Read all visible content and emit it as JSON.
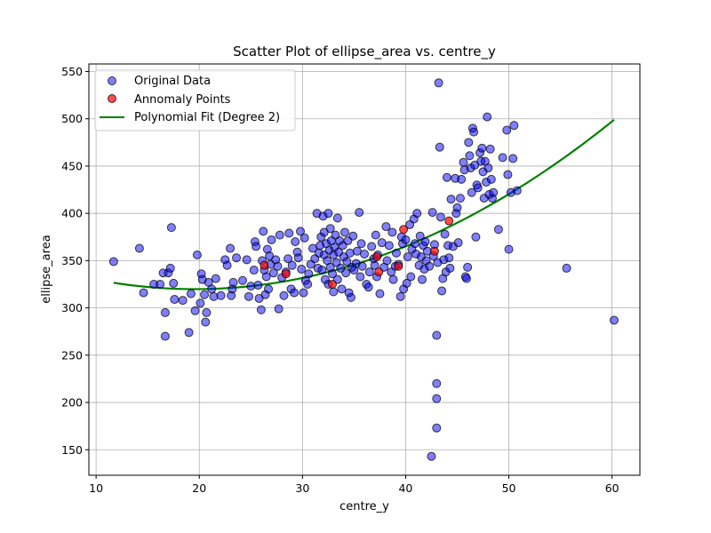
{
  "chart_data": {
    "type": "scatter",
    "title": "Scatter Plot of ellipse_area vs. centre_y",
    "xlabel": "centre_y",
    "ylabel": "ellipse_area",
    "xlim": [
      9.3,
      62.7
    ],
    "ylim": [
      123,
      558
    ],
    "xticks": [
      10,
      20,
      30,
      40,
      50,
      60
    ],
    "yticks": [
      150,
      200,
      250,
      300,
      350,
      400,
      450,
      500,
      550
    ],
    "grid": true,
    "legend_position": "top-left",
    "series": [
      {
        "name": "Original Data",
        "kind": "scatter",
        "color": "#0000ff",
        "points": [
          [
            11.7,
            349
          ],
          [
            14.2,
            363
          ],
          [
            14.6,
            316
          ],
          [
            15.6,
            325
          ],
          [
            16.2,
            325
          ],
          [
            16.5,
            337
          ],
          [
            16.7,
            295
          ],
          [
            16.7,
            270
          ],
          [
            17.0,
            337
          ],
          [
            17.2,
            342
          ],
          [
            17.3,
            385
          ],
          [
            17.5,
            326
          ],
          [
            17.6,
            309
          ],
          [
            18.4,
            308
          ],
          [
            19.0,
            274
          ],
          [
            19.2,
            315
          ],
          [
            19.6,
            297
          ],
          [
            19.8,
            356
          ],
          [
            20.1,
            305
          ],
          [
            20.2,
            336
          ],
          [
            20.3,
            330
          ],
          [
            20.5,
            314
          ],
          [
            20.6,
            285
          ],
          [
            20.7,
            295
          ],
          [
            20.9,
            327
          ],
          [
            21.2,
            320
          ],
          [
            21.4,
            312
          ],
          [
            21.6,
            331
          ],
          [
            22.1,
            313
          ],
          [
            22.5,
            351
          ],
          [
            22.7,
            345
          ],
          [
            23.0,
            363
          ],
          [
            23.1,
            313
          ],
          [
            23.2,
            320
          ],
          [
            23.3,
            327
          ],
          [
            23.6,
            353
          ],
          [
            24.2,
            329
          ],
          [
            24.6,
            351
          ],
          [
            24.8,
            312
          ],
          [
            25.0,
            323
          ],
          [
            25.3,
            340
          ],
          [
            25.4,
            370
          ],
          [
            25.5,
            365
          ],
          [
            25.7,
            324
          ],
          [
            25.8,
            310
          ],
          [
            26.0,
            298
          ],
          [
            26.1,
            350
          ],
          [
            26.2,
            381
          ],
          [
            26.3,
            340
          ],
          [
            26.4,
            314
          ],
          [
            26.5,
            333
          ],
          [
            26.6,
            362
          ],
          [
            26.7,
            320
          ],
          [
            26.8,
            355
          ],
          [
            26.9,
            346
          ],
          [
            27.0,
            372
          ],
          [
            27.2,
            337
          ],
          [
            27.4,
            351
          ],
          [
            27.6,
            344
          ],
          [
            27.7,
            299
          ],
          [
            27.8,
            377
          ],
          [
            28.0,
            332
          ],
          [
            28.2,
            313
          ],
          [
            28.4,
            338
          ],
          [
            28.6,
            352
          ],
          [
            28.7,
            379
          ],
          [
            28.9,
            320
          ],
          [
            29.0,
            345
          ],
          [
            29.2,
            316
          ],
          [
            29.3,
            370
          ],
          [
            29.5,
            359
          ],
          [
            29.6,
            353
          ],
          [
            29.8,
            381
          ],
          [
            29.9,
            341
          ],
          [
            30.1,
            316
          ],
          [
            30.2,
            374
          ],
          [
            30.3,
            329
          ],
          [
            30.5,
            325
          ],
          [
            30.6,
            336
          ],
          [
            30.8,
            346
          ],
          [
            31.0,
            363
          ],
          [
            31.2,
            352
          ],
          [
            31.4,
            400
          ],
          [
            31.5,
            342
          ],
          [
            31.6,
            358
          ],
          [
            31.7,
            366
          ],
          [
            31.8,
            375
          ],
          [
            31.9,
            340
          ],
          [
            32.0,
            397
          ],
          [
            32.1,
            356
          ],
          [
            32.1,
            380
          ],
          [
            32.2,
            330
          ],
          [
            32.3,
            368
          ],
          [
            32.4,
            350
          ],
          [
            32.5,
            400
          ],
          [
            32.5,
            325
          ],
          [
            32.6,
            361
          ],
          [
            32.7,
            384
          ],
          [
            32.7,
            343
          ],
          [
            32.8,
            371
          ],
          [
            32.9,
            336
          ],
          [
            33.0,
            356
          ],
          [
            33.0,
            317
          ],
          [
            33.1,
            364
          ],
          [
            33.2,
            377
          ],
          [
            33.3,
            348
          ],
          [
            33.4,
            395
          ],
          [
            33.4,
            330
          ],
          [
            33.5,
            359
          ],
          [
            33.6,
            371
          ],
          [
            33.7,
            342
          ],
          [
            33.8,
            320
          ],
          [
            33.9,
            366
          ],
          [
            34.0,
            354
          ],
          [
            34.1,
            380
          ],
          [
            34.2,
            337
          ],
          [
            34.3,
            349
          ],
          [
            34.4,
            371
          ],
          [
            34.5,
            316
          ],
          [
            34.6,
            358
          ],
          [
            34.7,
            311
          ],
          [
            34.8,
            343
          ],
          [
            34.9,
            376
          ],
          [
            35.0,
            340
          ],
          [
            35.2,
            347
          ],
          [
            35.3,
            360
          ],
          [
            35.5,
            401
          ],
          [
            35.6,
            333
          ],
          [
            35.7,
            368
          ],
          [
            35.8,
            344
          ],
          [
            36.0,
            357
          ],
          [
            36.2,
            325
          ],
          [
            36.4,
            322
          ],
          [
            36.5,
            338
          ],
          [
            36.7,
            365
          ],
          [
            36.9,
            352
          ],
          [
            37.0,
            345
          ],
          [
            37.1,
            377
          ],
          [
            37.2,
            333
          ],
          [
            37.3,
            356
          ],
          [
            37.5,
            315
          ],
          [
            37.7,
            369
          ],
          [
            37.9,
            343
          ],
          [
            38.1,
            386
          ],
          [
            38.2,
            350
          ],
          [
            38.4,
            366
          ],
          [
            38.6,
            338
          ],
          [
            38.7,
            380
          ],
          [
            38.8,
            330
          ],
          [
            39.0,
            344
          ],
          [
            39.1,
            358
          ],
          [
            39.3,
            346
          ],
          [
            39.5,
            312
          ],
          [
            39.6,
            375
          ],
          [
            39.7,
            368
          ],
          [
            39.8,
            320
          ],
          [
            40.0,
            372
          ],
          [
            40.1,
            326
          ],
          [
            40.2,
            354
          ],
          [
            40.4,
            388
          ],
          [
            40.5,
            333
          ],
          [
            40.6,
            362
          ],
          [
            40.8,
            394
          ],
          [
            40.9,
            368
          ],
          [
            41.0,
            357
          ],
          [
            41.1,
            400
          ],
          [
            41.3,
            345
          ],
          [
            41.4,
            376
          ],
          [
            41.5,
            354
          ],
          [
            41.6,
            330
          ],
          [
            41.7,
            366
          ],
          [
            41.8,
            341
          ],
          [
            41.9,
            370
          ],
          [
            42.0,
            350
          ],
          [
            42.1,
            360
          ],
          [
            42.3,
            344
          ],
          [
            42.5,
            143
          ],
          [
            42.6,
            401
          ],
          [
            42.7,
            355
          ],
          [
            42.8,
            367
          ],
          [
            43.0,
            271
          ],
          [
            43.0,
            220
          ],
          [
            43.0,
            204
          ],
          [
            43.0,
            173
          ],
          [
            43.1,
            348
          ],
          [
            43.2,
            538
          ],
          [
            43.3,
            470
          ],
          [
            43.4,
            396
          ],
          [
            43.5,
            318
          ],
          [
            43.6,
            331
          ],
          [
            43.7,
            351
          ],
          [
            43.8,
            378
          ],
          [
            43.9,
            338
          ],
          [
            44.0,
            438
          ],
          [
            44.1,
            366
          ],
          [
            44.2,
            353
          ],
          [
            44.3,
            342
          ],
          [
            44.4,
            415
          ],
          [
            44.6,
            365
          ],
          [
            44.8,
            437
          ],
          [
            44.9,
            400
          ],
          [
            45.0,
            406
          ],
          [
            45.1,
            369
          ],
          [
            45.3,
            416
          ],
          [
            45.4,
            436
          ],
          [
            45.6,
            454
          ],
          [
            45.7,
            446
          ],
          [
            45.8,
            333
          ],
          [
            45.9,
            331
          ],
          [
            46.0,
            343
          ],
          [
            46.1,
            475
          ],
          [
            46.2,
            461
          ],
          [
            46.3,
            448
          ],
          [
            46.4,
            422
          ],
          [
            46.5,
            490
          ],
          [
            46.6,
            486
          ],
          [
            46.7,
            451
          ],
          [
            46.8,
            375
          ],
          [
            46.9,
            430
          ],
          [
            47.0,
            427
          ],
          [
            47.2,
            464
          ],
          [
            47.3,
            455
          ],
          [
            47.4,
            469
          ],
          [
            47.5,
            444
          ],
          [
            47.6,
            416
          ],
          [
            47.7,
            455
          ],
          [
            47.8,
            433
          ],
          [
            47.9,
            502
          ],
          [
            48.0,
            448
          ],
          [
            48.1,
            420
          ],
          [
            48.2,
            468
          ],
          [
            48.3,
            436
          ],
          [
            48.4,
            416
          ],
          [
            48.5,
            422
          ],
          [
            49.0,
            383
          ],
          [
            49.4,
            459
          ],
          [
            49.8,
            488
          ],
          [
            49.9,
            441
          ],
          [
            50.0,
            362
          ],
          [
            50.2,
            422
          ],
          [
            50.4,
            458
          ],
          [
            50.5,
            493
          ],
          [
            50.8,
            424
          ],
          [
            55.6,
            342
          ],
          [
            60.2,
            287
          ]
        ]
      },
      {
        "name": "Annomaly Points",
        "kind": "scatter",
        "color": "#ff0000",
        "points": [
          [
            26.3,
            345
          ],
          [
            28.4,
            336
          ],
          [
            32.9,
            325
          ],
          [
            37.2,
            354
          ],
          [
            37.4,
            338
          ],
          [
            39.3,
            344
          ],
          [
            39.8,
            383
          ],
          [
            42.8,
            360
          ],
          [
            44.2,
            392
          ]
        ]
      },
      {
        "name": "Polynomial Fit (Degree 2)",
        "kind": "line",
        "color": "#008000",
        "coefficients": [
          361.45,
          -4.25,
          0.10855
        ],
        "x_range": [
          11.7,
          60.2
        ]
      }
    ]
  }
}
